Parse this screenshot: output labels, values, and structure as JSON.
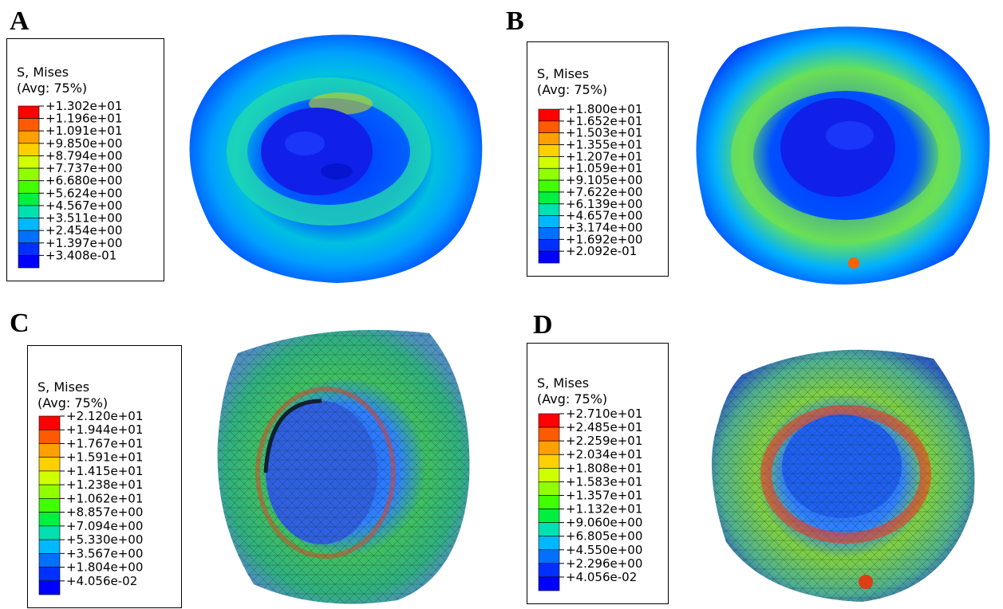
{
  "figure": {
    "panels": [
      {
        "letter": "A",
        "legend_title_1": "S, Mises",
        "legend_title_2": "(Avg: 75%)",
        "values": [
          "+1.302e+01",
          "+1.196e+01",
          "+1.091e+01",
          "+9.850e+00",
          "+8.794e+00",
          "+7.737e+00",
          "+6.680e+00",
          "+5.624e+00",
          "+4.567e+00",
          "+3.511e+00",
          "+2.454e+00",
          "+1.397e+00",
          "+3.408e-01"
        ],
        "model_style": "smooth"
      },
      {
        "letter": "B",
        "legend_title_1": "S, Mises",
        "legend_title_2": "(Avg: 75%)",
        "values": [
          "+1.800e+01",
          "+1.652e+01",
          "+1.503e+01",
          "+1.355e+01",
          "+1.207e+01",
          "+1.059e+01",
          "+9.105e+00",
          "+7.622e+00",
          "+6.139e+00",
          "+4.657e+00",
          "+3.174e+00",
          "+1.692e+00",
          "+2.092e-01"
        ],
        "model_style": "smooth"
      },
      {
        "letter": "C",
        "legend_title_1": "S, Mises",
        "legend_title_2": "(Avg: 75%)",
        "values": [
          "+2.120e+01",
          "+1.944e+01",
          "+1.767e+01",
          "+1.591e+01",
          "+1.415e+01",
          "+1.238e+01",
          "+1.062e+01",
          "+8.857e+00",
          "+7.094e+00",
          "+5.330e+00",
          "+3.567e+00",
          "+1.804e+00",
          "+4.056e-02"
        ],
        "model_style": "mesh"
      },
      {
        "letter": "D",
        "legend_title_1": "S, Mises",
        "legend_title_2": "(Avg: 75%)",
        "values": [
          "+2.710e+01",
          "+2.485e+01",
          "+2.259e+01",
          "+2.034e+01",
          "+1.808e+01",
          "+1.583e+01",
          "+1.357e+01",
          "+1.132e+01",
          "+9.060e+00",
          "+6.805e+00",
          "+4.550e+00",
          "+2.296e+00",
          "+4.056e-02"
        ],
        "model_style": "mesh"
      }
    ],
    "colorscale": [
      "#ff0000",
      "#ff5a00",
      "#ffa000",
      "#ffd000",
      "#d0ff00",
      "#90ff00",
      "#40ff00",
      "#00f040",
      "#00e0b0",
      "#00b8ff",
      "#0070ff",
      "#0030ff",
      "#0000ff"
    ]
  }
}
